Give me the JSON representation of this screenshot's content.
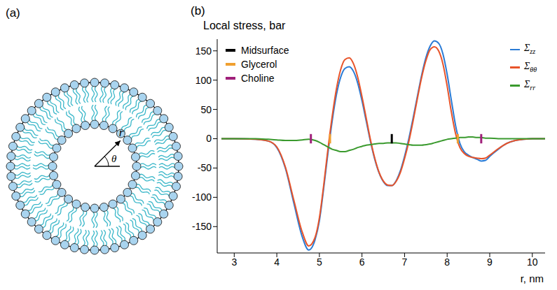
{
  "diagram": {
    "panel": "(a)",
    "radius_label": "r",
    "angle_label": "θ"
  },
  "chart_data": {
    "panel": "(b)",
    "type": "line",
    "title": "Local stress, bar",
    "x_label": "r, nm",
    "x": [
      2.7,
      3.0,
      3.5,
      3.8,
      4.0,
      4.2,
      4.4,
      4.6,
      4.75,
      4.9,
      5.0,
      5.1,
      5.2,
      5.3,
      5.4,
      5.5,
      5.6,
      5.7,
      5.8,
      5.9,
      6.0,
      6.1,
      6.2,
      6.3,
      6.4,
      6.5,
      6.6,
      6.7,
      6.8,
      6.9,
      7.0,
      7.1,
      7.2,
      7.3,
      7.4,
      7.5,
      7.6,
      7.7,
      7.8,
      7.9,
      8.0,
      8.1,
      8.2,
      8.3,
      8.4,
      8.5,
      8.6,
      8.7,
      8.8,
      8.9,
      9.0,
      9.2,
      9.4,
      9.6,
      9.8,
      10.0,
      10.3
    ],
    "series": [
      {
        "name": "Σzz",
        "color": "#2a7bd5",
        "values": [
          0,
          0,
          -1,
          -4,
          -15,
          -50,
          -110,
          -168,
          -190,
          -172,
          -140,
          -85,
          -25,
          30,
          75,
          105,
          120,
          123,
          115,
          95,
          65,
          30,
          -5,
          -35,
          -58,
          -73,
          -80,
          -80,
          -72,
          -55,
          -30,
          0,
          35,
          72,
          108,
          138,
          158,
          167,
          163,
          145,
          110,
          65,
          22,
          -8,
          -22,
          -28,
          -32,
          -35,
          -38,
          -37,
          -30,
          -18,
          -8,
          -3,
          -1,
          0,
          0
        ]
      },
      {
        "name": "Σθθ",
        "color": "#e8542a",
        "values": [
          0,
          0,
          -1,
          -4,
          -14,
          -48,
          -105,
          -160,
          -183,
          -168,
          -135,
          -80,
          -18,
          38,
          85,
          118,
          135,
          138,
          128,
          105,
          72,
          35,
          -2,
          -33,
          -57,
          -72,
          -79,
          -80,
          -73,
          -58,
          -34,
          -5,
          30,
          68,
          104,
          133,
          152,
          157,
          150,
          128,
          90,
          45,
          8,
          -15,
          -25,
          -30,
          -32,
          -33,
          -34,
          -33,
          -28,
          -17,
          -8,
          -3,
          -1,
          0,
          0
        ]
      },
      {
        "name": "Σrr",
        "color": "#3a9a2e",
        "values": [
          0,
          0,
          0,
          -1,
          -2,
          -3,
          -3,
          -2,
          -1,
          -3,
          -6,
          -10,
          -14,
          -18,
          -20,
          -22,
          -22,
          -20,
          -18,
          -15,
          -13,
          -11,
          -10,
          -9,
          -8,
          -8,
          -7,
          -7,
          -7,
          -8,
          -9,
          -10,
          -11,
          -11,
          -11,
          -10,
          -9,
          -7,
          -5,
          -3,
          -1,
          0,
          1,
          2,
          2,
          3,
          3,
          2,
          2,
          1,
          1,
          0,
          0,
          0,
          0,
          0,
          0
        ]
      }
    ],
    "markers": [
      {
        "name": "Midsurface",
        "color": "#000000",
        "x": [
          6.7
        ]
      },
      {
        "name": "Glycerol",
        "color": "#f0a030",
        "x": [
          5.25,
          8.25
        ]
      },
      {
        "name": "Choline",
        "color": "#a0207a",
        "x": [
          4.8,
          8.8
        ]
      }
    ],
    "xlim": [
      2.6,
      10.3
    ],
    "xticks": [
      3,
      4,
      5,
      6,
      7,
      8,
      9,
      10
    ],
    "ylim": [
      -195,
      170
    ],
    "yticks": [
      -150,
      -100,
      -50,
      0,
      50,
      100,
      150
    ],
    "grid": false,
    "legend": "top-right"
  }
}
